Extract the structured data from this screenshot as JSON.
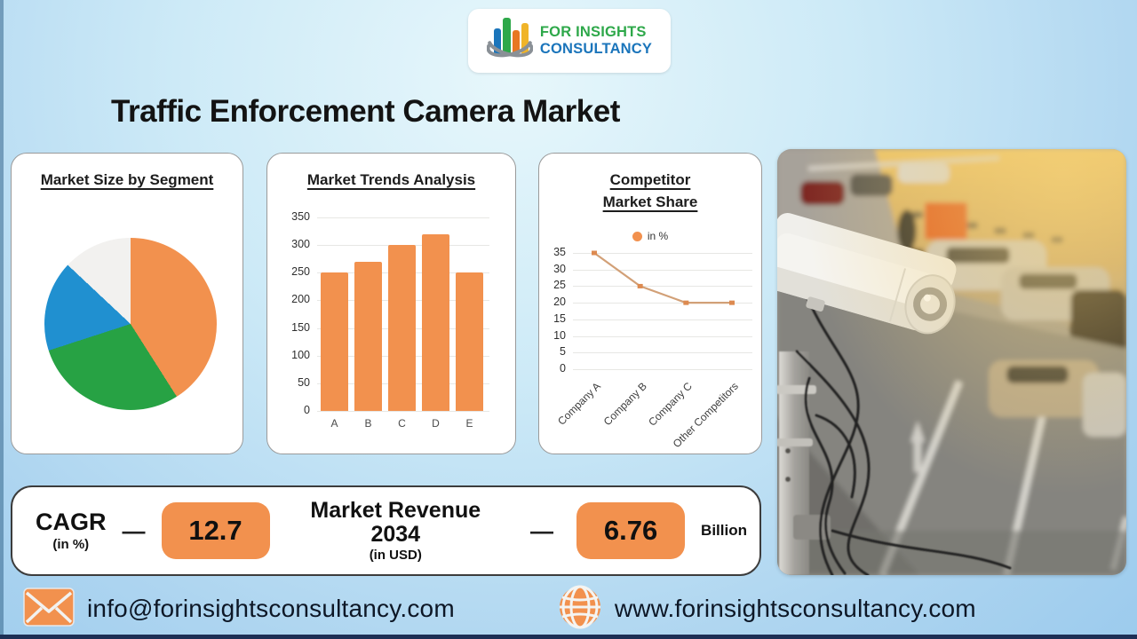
{
  "header": {
    "title": "Traffic Enforcement Camera Market"
  },
  "logo": {
    "line1": "FOR INSIGHTS",
    "line2": "CONSULTANCY"
  },
  "cards": {
    "pie": {
      "title": "Market Size by Segment"
    },
    "bar": {
      "title": "Market Trends Analysis"
    },
    "line": {
      "title_line1": "Competitor",
      "title_line2": "Market Share",
      "legend_label": "in %"
    }
  },
  "chart_data": [
    {
      "type": "pie",
      "title": "Market Size by Segment",
      "values": [
        41,
        29,
        17,
        13
      ],
      "colors": [
        "#F2914E",
        "#27A244",
        "#2090D0",
        "#F2F1EF"
      ],
      "legend": "none"
    },
    {
      "type": "bar",
      "title": "Market Trends Analysis",
      "categories": [
        "A",
        "B",
        "C",
        "D",
        "E"
      ],
      "values": [
        250,
        270,
        300,
        320,
        250
      ],
      "ylim": [
        0,
        350
      ],
      "yticks": [
        0,
        50,
        100,
        150,
        200,
        250,
        300,
        350
      ],
      "bar_color": "#F2914E",
      "grid": true
    },
    {
      "type": "line",
      "title": "Competitor Market Share",
      "series_name": "in %",
      "categories": [
        "Company A",
        "Company B",
        "Company C",
        "Other Competitors"
      ],
      "values": [
        35,
        25,
        20,
        20
      ],
      "ylim": [
        0,
        35
      ],
      "yticks": [
        0,
        5,
        10,
        15,
        20,
        25,
        30,
        35
      ],
      "line_color": "#D2A077",
      "marker_color": "#DD8A50",
      "grid": true,
      "legend_position": "top"
    }
  ],
  "stats": {
    "cagr_label": "CAGR",
    "cagr_sub": "(in %)",
    "dash1": "—",
    "cagr_value": "12.7",
    "revenue_label": "Market Revenue 2034",
    "revenue_sub": "(in USD)",
    "dash2": "—",
    "revenue_value": "6.76",
    "revenue_unit": "Billion"
  },
  "footer": {
    "email": "info@forinsightsconsultancy.com",
    "website": "www.forinsightsconsultancy.com"
  },
  "colors": {
    "accent_orange": "#F2914E",
    "logo_green": "#2EA84A",
    "logo_blue": "#1B75BB"
  }
}
